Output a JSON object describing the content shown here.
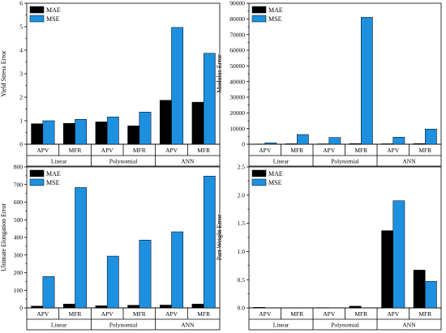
{
  "chart_data": [
    {
      "type": "bar",
      "ylabel": "Yield Stress Error",
      "ylim": [
        0,
        6
      ],
      "yticks": [
        0,
        1,
        2,
        3,
        4,
        5,
        6
      ],
      "groups": [
        "Linear",
        "Polynomial",
        "ANN"
      ],
      "categories": [
        "APV",
        "MFR",
        "APV",
        "MFR",
        "APV",
        "MFR"
      ],
      "series": [
        {
          "name": "MAE",
          "color": "#000000",
          "values": [
            0.87,
            0.89,
            0.95,
            0.78,
            1.87,
            1.79
          ]
        },
        {
          "name": "MSE",
          "color": "#1E90E0",
          "values": [
            1.0,
            1.06,
            1.16,
            1.37,
            4.97,
            3.87
          ]
        }
      ],
      "legend": "top-left",
      "grid": false
    },
    {
      "type": "bar",
      "ylabel": "Modulus Error",
      "ylim": [
        0,
        90000
      ],
      "yticks": [
        0,
        10000,
        20000,
        30000,
        40000,
        50000,
        60000,
        70000,
        80000,
        90000
      ],
      "groups": [
        "Linear",
        "Polynomial",
        "ANN"
      ],
      "categories": [
        "APV",
        "MFR",
        "APV",
        "MFR",
        "APV",
        "MFR"
      ],
      "series": [
        {
          "name": "MAE",
          "color": "#000000",
          "values": [
            150,
            300,
            250,
            400,
            300,
            450
          ]
        },
        {
          "name": "MSE",
          "color": "#1E90E0",
          "values": [
            900,
            6200,
            4300,
            81000,
            4500,
            9700
          ]
        }
      ],
      "legend": "top-left",
      "grid": false
    },
    {
      "type": "bar",
      "ylabel": "Ultimate Elongation Error",
      "ylim": [
        0,
        800
      ],
      "yticks": [
        0,
        100,
        200,
        300,
        400,
        500,
        600,
        700,
        800
      ],
      "groups": [
        "Linear",
        "Polynomial",
        "ANN"
      ],
      "categories": [
        "APV",
        "MFR",
        "APV",
        "MFR",
        "APV",
        "MFR"
      ],
      "series": [
        {
          "name": "MAE",
          "color": "#000000",
          "values": [
            10,
            22,
            12,
            15,
            16,
            22
          ]
        },
        {
          "name": "MSE",
          "color": "#1E90E0",
          "values": [
            178,
            683,
            294,
            385,
            432,
            748
          ]
        }
      ],
      "legend": "top-left",
      "grid": false
    },
    {
      "type": "bar",
      "ylabel": "Part Weight Error",
      "ylim": [
        0,
        2.5
      ],
      "yticks": [
        0.0,
        0.5,
        1.0,
        1.5,
        2.0,
        2.5
      ],
      "yticks_labels": [
        "0.0",
        "0.5",
        "1.0",
        "1.5",
        "2.0",
        "2.5"
      ],
      "groups": [
        "Linear",
        "Polynomial",
        "ANN"
      ],
      "categories": [
        "APV",
        "MFR",
        "APV",
        "MFR",
        "APV",
        "MFR"
      ],
      "series": [
        {
          "name": "MAE",
          "color": "#000000",
          "values": [
            0.01,
            0.002,
            0.005,
            0.03,
            1.37,
            0.67
          ]
        },
        {
          "name": "MSE",
          "color": "#1E90E0",
          "values": [
            0.0,
            0.0,
            0.0,
            0.001,
            1.9,
            0.47
          ]
        }
      ],
      "legend": "top-left",
      "grid": false
    }
  ]
}
